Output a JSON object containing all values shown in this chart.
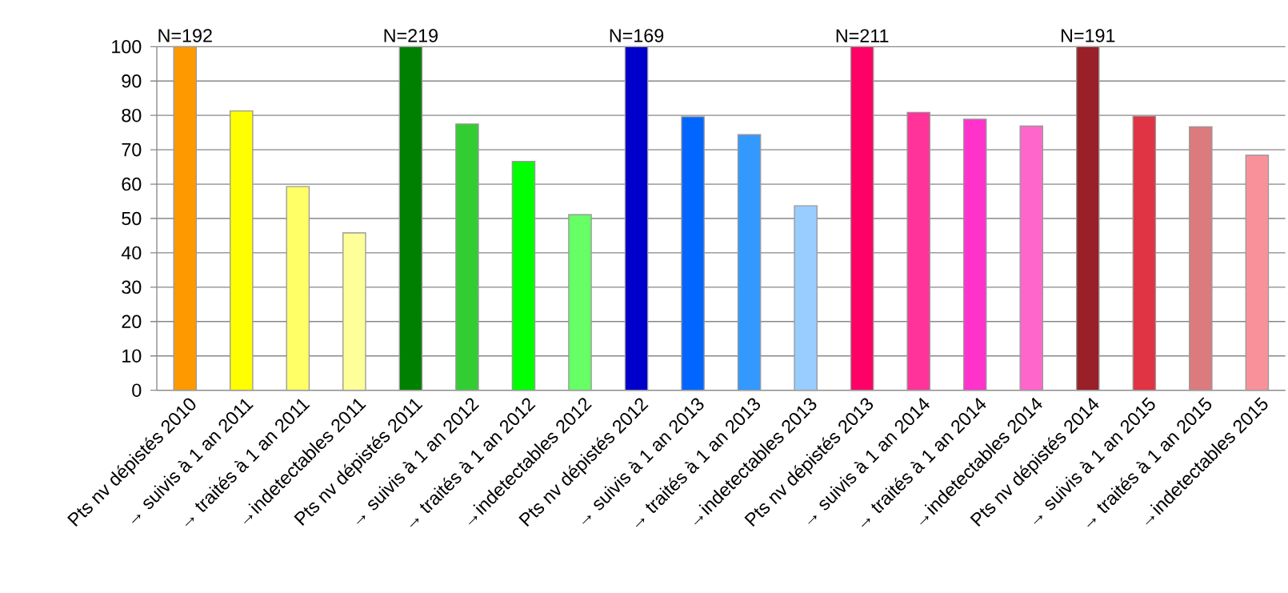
{
  "chart_data": {
    "type": "bar",
    "categories": [
      "Pts nv dépistés 2010",
      "→ suivis à 1 an 2011",
      "→ traités à 1 an 2011",
      "→indetectables  2011",
      "Pts nv dépistés 2011",
      "→ suivis à 1 an 2012",
      "→ traités à 1 an 2012",
      "→indetectables  2012",
      "Pts nv dépistés 2012",
      "→ suivis à 1 an 2013",
      "→ traités à 1 an 2013",
      "→indetectables  2013",
      "Pts nv dépistés 2013",
      "→ suivis à 1 an 2014",
      "→ traités à 1 an 2014",
      "→indetectables  2014",
      "Pts nv dépistés 2014",
      "→ suivis à 1 an 2015",
      "→ traités à 1 an 2015",
      "→indetectables  2015"
    ],
    "values": [
      100,
      81.3,
      59.3,
      45.8,
      100,
      77.5,
      66.6,
      51.1,
      100,
      79.6,
      74.4,
      53.7,
      100,
      80.9,
      78.9,
      76.9,
      100,
      79.8,
      76.7,
      68.4
    ],
    "colors": [
      "#ff9900",
      "#ffff00",
      "#ffff66",
      "#ffff99",
      "#008000",
      "#33cc33",
      "#00ff00",
      "#66ff66",
      "#0000cc",
      "#0066ff",
      "#3399ff",
      "#99ccff",
      "#ff0066",
      "#ff3399",
      "#ff33cc",
      "#ff66cc",
      "#991f28",
      "#e03344",
      "#db7b7e",
      "#f8919a"
    ],
    "ylim": [
      0,
      100
    ],
    "yticks": [
      0,
      10,
      20,
      30,
      40,
      50,
      60,
      70,
      80,
      90,
      100
    ],
    "grid": "y",
    "annotations": [
      {
        "text": "N=192",
        "x": "Pts nv dépistés 2010",
        "y": 100
      },
      {
        "text": "N=219",
        "x": "Pts nv dépistés 2011",
        "y": 100
      },
      {
        "text": "N=169",
        "x": "Pts nv dépistés 2012",
        "y": 100
      },
      {
        "text": "N=211",
        "x": "Pts nv dépistés 2013",
        "y": 100
      },
      {
        "text": "N=191",
        "x": "Pts nv dépistés 2014",
        "y": 100
      }
    ]
  }
}
